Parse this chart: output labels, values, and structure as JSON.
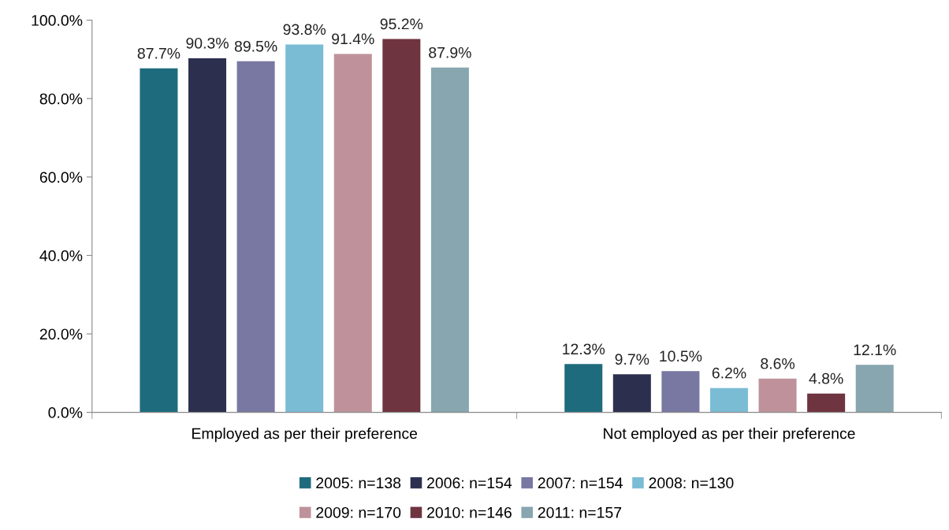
{
  "chart_data": {
    "type": "bar",
    "categories": [
      "Employed as per their preference",
      "Not employed as per their preference"
    ],
    "series": [
      {
        "name": "2005: n=138",
        "color": "#1f6b7e",
        "values": [
          87.7,
          12.3
        ],
        "value_labels": [
          "87.7%",
          "12.3%"
        ]
      },
      {
        "name": "2006: n=154",
        "color": "#2d2f4e",
        "values": [
          90.3,
          9.7
        ],
        "value_labels": [
          "90.3%",
          "9.7%"
        ]
      },
      {
        "name": "2007: n=154",
        "color": "#7878a2",
        "values": [
          89.5,
          10.5
        ],
        "value_labels": [
          "89.5%",
          "10.5%"
        ]
      },
      {
        "name": "2008: n=130",
        "color": "#7bbcd5",
        "values": [
          93.8,
          6.2
        ],
        "value_labels": [
          "93.8%",
          "6.2%"
        ]
      },
      {
        "name": "2009: n=170",
        "color": "#bf929b",
        "values": [
          91.4,
          8.6
        ],
        "value_labels": [
          "91.4%",
          "8.6%"
        ]
      },
      {
        "name": "2010: n=146",
        "color": "#6e3440",
        "values": [
          95.2,
          4.8
        ],
        "value_labels": [
          "95.2%",
          "4.8%"
        ]
      },
      {
        "name": "2011: n=157",
        "color": "#87a6b0",
        "values": [
          87.9,
          12.1
        ],
        "value_labels": [
          "87.9%",
          "12.1%"
        ]
      }
    ],
    "ylim": [
      0,
      100
    ],
    "yticks": [
      {
        "value": 0,
        "label": "0.0%"
      },
      {
        "value": 20,
        "label": "20.0%"
      },
      {
        "value": 40,
        "label": "40.0%"
      },
      {
        "value": 60,
        "label": "60.0%"
      },
      {
        "value": 80,
        "label": "80.0%"
      },
      {
        "value": 100,
        "label": "100.0%"
      }
    ],
    "grid": false,
    "legend": "bottom"
  }
}
